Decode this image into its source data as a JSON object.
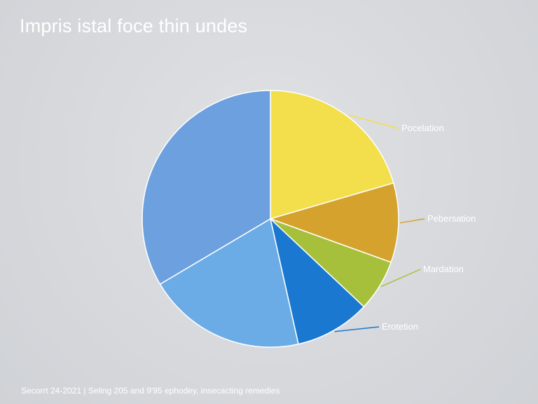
{
  "chart_data": {
    "type": "pie",
    "title": "Impris istal foce thin undes",
    "footer": "Secorrt 24-2021 | Seling 205 and 9'95 ephodey, insecacting remedies",
    "slices": [
      {
        "label": "Pocelation",
        "value": 20.5,
        "color": "#f3df4c"
      },
      {
        "label": "Pebersation",
        "value": 10.0,
        "color": "#d4a22d"
      },
      {
        "label": "Mardation",
        "value": 6.5,
        "color": "#a6c03c"
      },
      {
        "label": "Erotetion",
        "value": 9.5,
        "color": "#1a78d0"
      },
      {
        "label": "",
        "value": 20.0,
        "color": "#6cace6"
      },
      {
        "label": "",
        "value": 33.5,
        "color": "#6ca0de"
      }
    ]
  }
}
